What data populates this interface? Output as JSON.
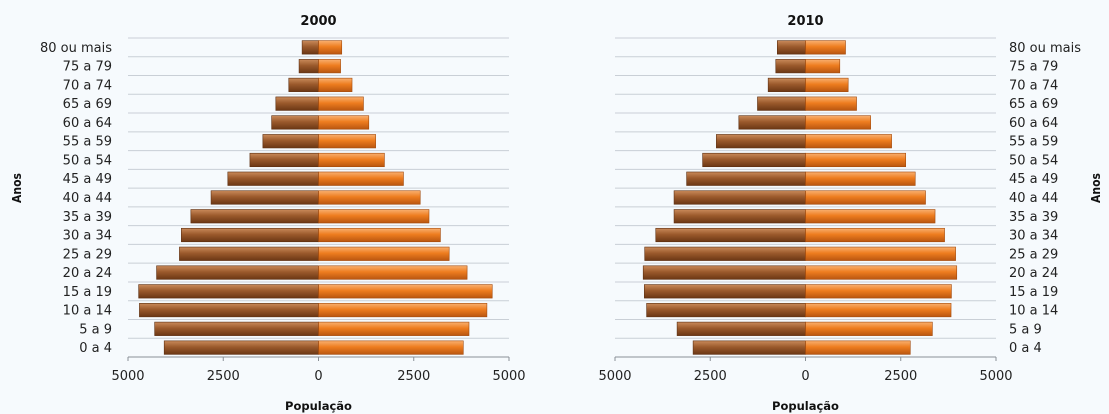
{
  "chart_data": [
    {
      "type": "bar",
      "title": "2000",
      "xlabel": "População",
      "ylabel": "Anos",
      "xticks": [
        "5000",
        "2500",
        "0",
        "2500",
        "5000"
      ],
      "xlim": [
        -5000,
        5000
      ],
      "categories": [
        "0 a 4",
        "5 a 9",
        "10 a 14",
        "15 a 19",
        "20 a 24",
        "25 a 29",
        "30 a 34",
        "35 a 39",
        "40 a 44",
        "45 a 49",
        "50 a 54",
        "55 a 59",
        "60 a 64",
        "65 a 69",
        "70 a 74",
        "75 a 79",
        "80 ou mais"
      ],
      "series": [
        {
          "color": "#9b5a2c",
          "values": [
            4050,
            4300,
            4700,
            4720,
            4250,
            3650,
            3600,
            3350,
            2820,
            2380,
            1800,
            1460,
            1230,
            1120,
            780,
            510,
            430
          ]
        },
        {
          "color": "#ee7d1f",
          "values": [
            3800,
            3950,
            4420,
            4560,
            3900,
            3430,
            3200,
            2900,
            2670,
            2230,
            1730,
            1500,
            1320,
            1180,
            880,
            580,
            610
          ]
        }
      ],
      "age_labels_side": "left"
    },
    {
      "type": "bar",
      "title": "2010",
      "xlabel": "População",
      "ylabel": "Anos",
      "xticks": [
        "5000",
        "2500",
        "0",
        "2500",
        "5000"
      ],
      "xlim": [
        -5000,
        5000
      ],
      "categories": [
        "0 a 4",
        "5 a 9",
        "10 a 14",
        "15 a 19",
        "20 a 24",
        "25 a 29",
        "30 a 34",
        "35 a 39",
        "40 a 44",
        "45 a 49",
        "50 a 54",
        "55 a 59",
        "60 a 64",
        "65 a 69",
        "70 a 74",
        "75 a 79",
        "80 ou mais"
      ],
      "series": [
        {
          "color": "#9b5a2c",
          "values": [
            2950,
            3370,
            4170,
            4230,
            4260,
            4220,
            3930,
            3450,
            3450,
            3120,
            2700,
            2340,
            1750,
            1260,
            980,
            780,
            740
          ]
        },
        {
          "color": "#ee7d1f",
          "values": [
            2750,
            3330,
            3820,
            3830,
            3970,
            3940,
            3650,
            3400,
            3150,
            2880,
            2630,
            2260,
            1710,
            1340,
            1120,
            900,
            1050
          ]
        }
      ],
      "age_labels_side": "right"
    }
  ]
}
